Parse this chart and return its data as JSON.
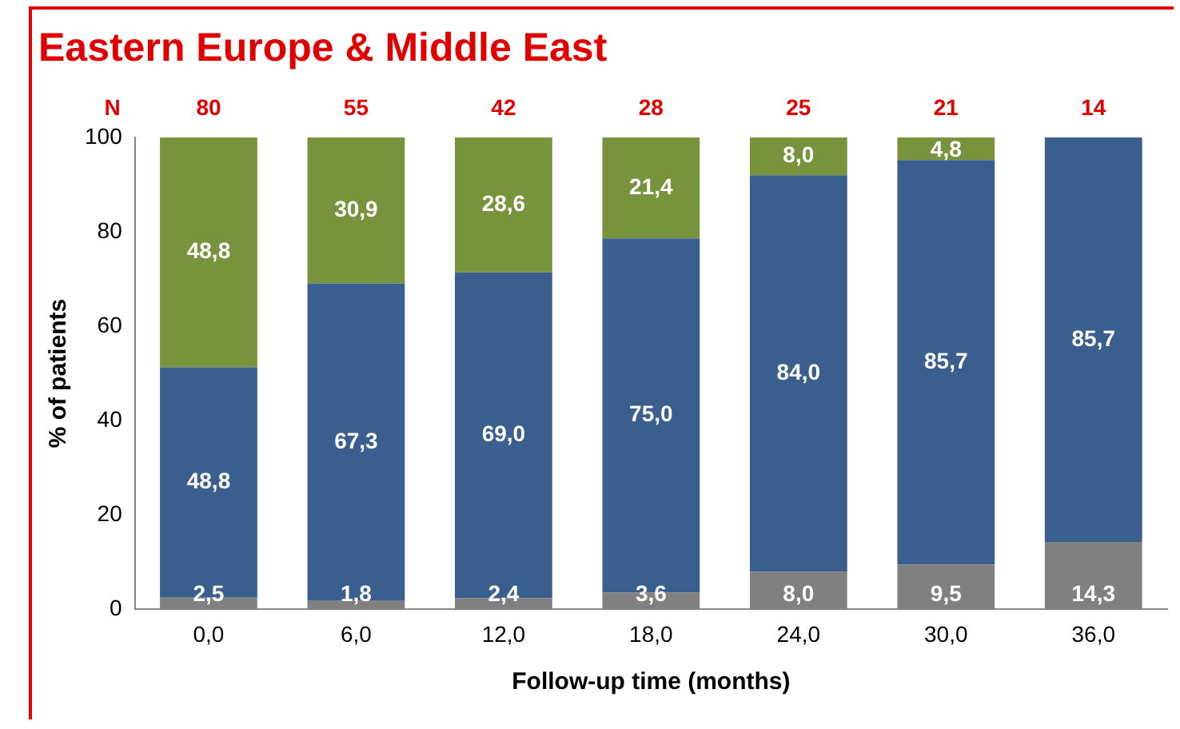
{
  "chart_data": {
    "type": "bar",
    "title": "Eastern Europe & Middle East",
    "xlabel": "Follow-up time (months)",
    "ylabel": "% of patients",
    "categories": [
      "0,0",
      "6,0",
      "12,0",
      "18,0",
      "24,0",
      "30,0",
      "36,0"
    ],
    "stacked": true,
    "ylim": [
      0,
      100
    ],
    "yticks": [
      0,
      20,
      40,
      60,
      80,
      100
    ],
    "grid": false,
    "legend": false,
    "series": [
      {
        "color": "#808080",
        "values": [
          2.5,
          1.8,
          2.4,
          3.6,
          8.0,
          9.5,
          14.3
        ],
        "value_labels": [
          "2,5",
          "1,8",
          "2,4",
          "3,6",
          "8,0",
          "9,5",
          "14,3"
        ]
      },
      {
        "color": "#3a5f8f",
        "values": [
          48.8,
          67.3,
          69.0,
          75.0,
          84.0,
          85.7,
          85.7
        ],
        "value_labels": [
          "48,8",
          "67,3",
          "69,0",
          "75,0",
          "84,0",
          "85,7",
          "85,7"
        ]
      },
      {
        "color": "#77933c",
        "values": [
          48.8,
          30.9,
          28.6,
          21.4,
          8.0,
          4.8,
          null
        ],
        "value_labels": [
          "48,8",
          "30,9",
          "28,6",
          "21,4",
          "8,0",
          "4,8",
          null
        ]
      }
    ],
    "annotations": [
      "N",
      "80",
      "55",
      "42",
      "28",
      "25",
      "21",
      "14"
    ]
  }
}
